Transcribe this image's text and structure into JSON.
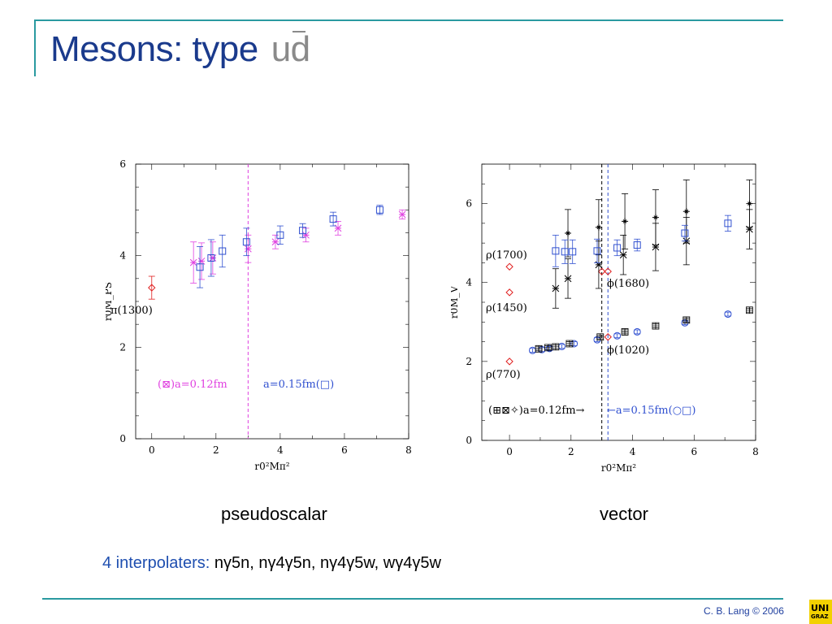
{
  "slide": {
    "title": "Mesons: type",
    "title_quarks": "ud",
    "caption_left": "pseudoscalar",
    "caption_right": "vector",
    "interpolators_label": "4 interpolaters:",
    "interpolators_terms": "nγ5n, nγ4γ5n, nγ4γ5w, wγ4γ5w",
    "credit": "C. B. Lang © 2006",
    "logo_text_top": "UNI",
    "logo_text_bottom": "GRAZ"
  },
  "colors": {
    "title": "#1a3a8c",
    "rule": "#2a9aa0",
    "magenta": "#e040e0",
    "blue": "#3050d0",
    "red": "#e02020",
    "black": "#000000"
  },
  "chart_data": [
    {
      "type": "scatter",
      "title": "",
      "xlabel": "r0²Mπ²",
      "ylabel": "r0M_PS",
      "xlim": [
        -0.5,
        8
      ],
      "ylim": [
        0,
        6
      ],
      "xticks": [
        "0",
        "2",
        "4",
        "6",
        "8"
      ],
      "yticks": [
        "0",
        "2",
        "4",
        "6"
      ],
      "vline": 3.0,
      "annotations": {
        "state": "π(1300)",
        "legend_a012": "(⊠)a=0.12fm",
        "legend_a015": "a=0.15fm(□)"
      },
      "series": [
        {
          "name": "",
          "color": "#e02020",
          "marker": "diamond",
          "points": [
            [
              0.0,
              3.3,
              0.25
            ]
          ]
        },
        {
          "name": "a=0.12fm",
          "color": "#e040e0",
          "marker": "star",
          "points": [
            [
              1.3,
              3.85,
              0.45
            ],
            [
              1.55,
              3.88,
              0.4
            ],
            [
              1.9,
              3.95,
              0.35
            ],
            [
              3.0,
              4.15,
              0.3
            ],
            [
              3.85,
              4.3,
              0.15
            ],
            [
              4.8,
              4.45,
              0.15
            ],
            [
              5.8,
              4.6,
              0.15
            ],
            [
              7.8,
              4.9,
              0.1
            ]
          ]
        },
        {
          "name": "a=0.15fm",
          "color": "#3050d0",
          "marker": "square",
          "points": [
            [
              1.5,
              3.75,
              0.45
            ],
            [
              1.85,
              3.95,
              0.4
            ],
            [
              2.2,
              4.1,
              0.35
            ],
            [
              2.95,
              4.3,
              0.3
            ],
            [
              4.0,
              4.45,
              0.2
            ],
            [
              4.7,
              4.55,
              0.15
            ],
            [
              5.65,
              4.8,
              0.15
            ],
            [
              7.1,
              5.0,
              0.1
            ]
          ]
        }
      ]
    },
    {
      "type": "scatter",
      "title": "",
      "xlabel": "r0²Mπ²",
      "ylabel": "r0M_V",
      "xlim": [
        -0.9,
        8
      ],
      "ylim": [
        0,
        7
      ],
      "xticks": [
        "0",
        "2",
        "4",
        "6",
        "8"
      ],
      "yticks": [
        "0",
        "2",
        "4",
        "6"
      ],
      "vlines": [
        {
          "x": 3.0,
          "color": "#000000"
        },
        {
          "x": 3.2,
          "color": "#3050d0"
        }
      ],
      "annotations": {
        "rho1700": "ρ(1700)",
        "rho1450": "ρ(1450)",
        "rho770": "ρ(770)",
        "phi1680": "ϕ(1680)",
        "phi1020": "ϕ(1020)",
        "legend_a012": "(⊞⊠✧)a=0.12fm→",
        "legend_a015": "←a=0.15fm(○□)"
      },
      "series": [
        {
          "name": "",
          "color": "#e02020",
          "marker": "diamond",
          "points": [
            [
              0.0,
              4.4,
              0
            ],
            [
              0.0,
              3.75,
              0
            ],
            [
              0.0,
              2.0,
              0
            ],
            [
              3.0,
              4.28,
              0
            ],
            [
              3.2,
              4.28,
              0
            ],
            [
              3.2,
              2.62,
              0
            ]
          ]
        },
        {
          "name": "excited a=0.12fm (star)",
          "color": "#000000",
          "marker": "star",
          "points": [
            [
              1.5,
              3.85,
              0.5
            ],
            [
              1.9,
              4.1,
              0.5
            ],
            [
              2.9,
              4.45,
              0.6
            ],
            [
              3.7,
              4.7,
              0.5
            ],
            [
              4.75,
              4.9,
              0.6
            ],
            [
              5.75,
              5.05,
              0.6
            ],
            [
              7.8,
              5.35,
              0.5
            ]
          ]
        },
        {
          "name": "excited a=0.12fm (cross)",
          "color": "#000000",
          "marker": "cross",
          "points": [
            [
              1.9,
              5.25,
              0.6
            ],
            [
              2.9,
              5.4,
              0.7
            ],
            [
              3.75,
              5.55,
              0.7
            ],
            [
              4.75,
              5.65,
              0.7
            ],
            [
              5.75,
              5.8,
              0.8
            ],
            [
              7.8,
              6.0,
              0.6
            ]
          ]
        },
        {
          "name": "excited a=0.15fm",
          "color": "#3050d0",
          "marker": "square",
          "points": [
            [
              1.5,
              4.8,
              0.4
            ],
            [
              1.8,
              4.78,
              0.3
            ],
            [
              2.05,
              4.78,
              0.3
            ],
            [
              2.85,
              4.8,
              0.3
            ],
            [
              3.5,
              4.88,
              0.2
            ],
            [
              4.15,
              4.95,
              0.15
            ],
            [
              5.7,
              5.25,
              0.2
            ],
            [
              7.1,
              5.5,
              0.2
            ]
          ]
        },
        {
          "name": "ground a=0.15fm",
          "color": "#3050d0",
          "marker": "circle",
          "points": [
            [
              0.75,
              2.28,
              0.05
            ],
            [
              1.05,
              2.3,
              0.05
            ],
            [
              1.3,
              2.33,
              0.05
            ],
            [
              1.7,
              2.38,
              0.05
            ],
            [
              2.1,
              2.45,
              0.05
            ],
            [
              2.85,
              2.55,
              0.05
            ],
            [
              3.5,
              2.65,
              0.05
            ],
            [
              4.15,
              2.75,
              0.05
            ],
            [
              5.7,
              2.98,
              0.05
            ],
            [
              7.1,
              3.2,
              0.05
            ]
          ]
        },
        {
          "name": "ground a=0.12fm",
          "color": "#000000",
          "marker": "boxstar",
          "points": [
            [
              0.95,
              2.32,
              0.05
            ],
            [
              1.25,
              2.35,
              0.05
            ],
            [
              1.5,
              2.37,
              0.05
            ],
            [
              1.95,
              2.45,
              0.05
            ],
            [
              2.95,
              2.62,
              0.05
            ],
            [
              3.75,
              2.75,
              0.05
            ],
            [
              4.75,
              2.9,
              0.05
            ],
            [
              5.75,
              3.05,
              0.05
            ],
            [
              7.8,
              3.3,
              0.05
            ]
          ]
        }
      ]
    }
  ]
}
